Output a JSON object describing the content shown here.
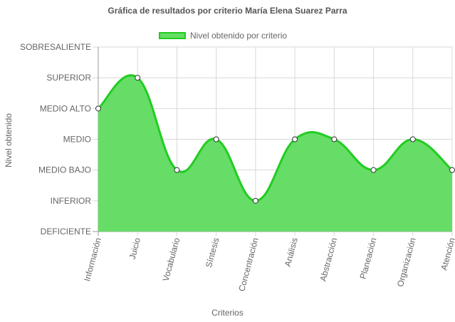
{
  "chart_data": {
    "type": "area",
    "title": "Gráfica de resultados por criterio María Elena Suarez Parra",
    "xlabel": "Criterios",
    "ylabel": "Nivel obtenido",
    "levels": [
      "DEFICIENTE",
      "INFERIOR",
      "MEDIO BAJO",
      "MEDIO",
      "MEDIO ALTO",
      "SUPERIOR",
      "SOBRESALIENTE"
    ],
    "categories": [
      "Información",
      "Juicio",
      "Vocabulario",
      "Síntesis",
      "Concentración",
      "Análisis",
      "Abstracción",
      "Planeación",
      "Organización",
      "Atención"
    ],
    "series": [
      {
        "name": "Nivel obtenido por criterio",
        "values": [
          "MEDIO ALTO",
          "SUPERIOR",
          "MEDIO BAJO",
          "MEDIO",
          "INFERIOR",
          "MEDIO",
          "MEDIO",
          "MEDIO BAJO",
          "MEDIO",
          "MEDIO BAJO"
        ]
      }
    ],
    "ylim": [
      "DEFICIENTE",
      "SOBRESALIENTE"
    ],
    "grid": true,
    "legend_position": "top",
    "colors": {
      "fill": "#66dd66",
      "stroke": "#22cc22"
    }
  }
}
